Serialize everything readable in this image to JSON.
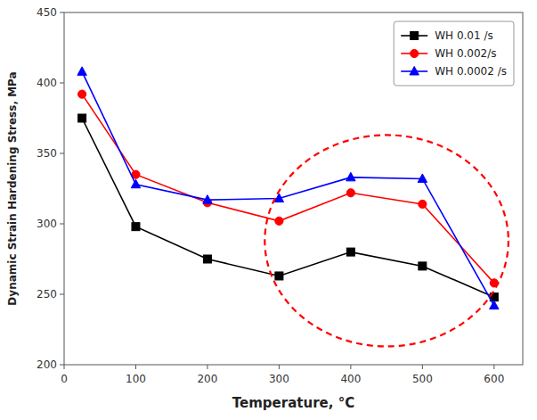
{
  "chart_data": {
    "type": "line",
    "x_label": "Temperature, °C",
    "y_label": "Dynamic Strain Hardening Stress, MPa",
    "x": [
      25,
      100,
      200,
      300,
      400,
      500,
      600
    ],
    "series": [
      {
        "name": "WH 0.01 /s",
        "color": "black",
        "marker": "square",
        "values": [
          375,
          298,
          275,
          263,
          280,
          270,
          248
        ]
      },
      {
        "name": "WH 0.002/s",
        "color": "red",
        "marker": "circle",
        "values": [
          392,
          335,
          315,
          302,
          322,
          314,
          258
        ]
      },
      {
        "name": "WH 0.0002 /s",
        "color": "blue",
        "marker": "triangle",
        "values": [
          408,
          328,
          317,
          318,
          333,
          332,
          242
        ]
      }
    ],
    "xlim": [
      0,
      640
    ],
    "ylim": [
      200,
      450
    ],
    "xticks": [
      0,
      100,
      200,
      300,
      400,
      500,
      600
    ],
    "yticks": [
      200,
      250,
      300,
      350,
      400,
      450
    ],
    "grid": false,
    "legend": "upper right",
    "annotations": [
      {
        "shape": "ellipse",
        "cx": 450,
        "cy": 288,
        "width": 340,
        "height": 150,
        "color": "red",
        "line_style": "dashed"
      }
    ]
  }
}
